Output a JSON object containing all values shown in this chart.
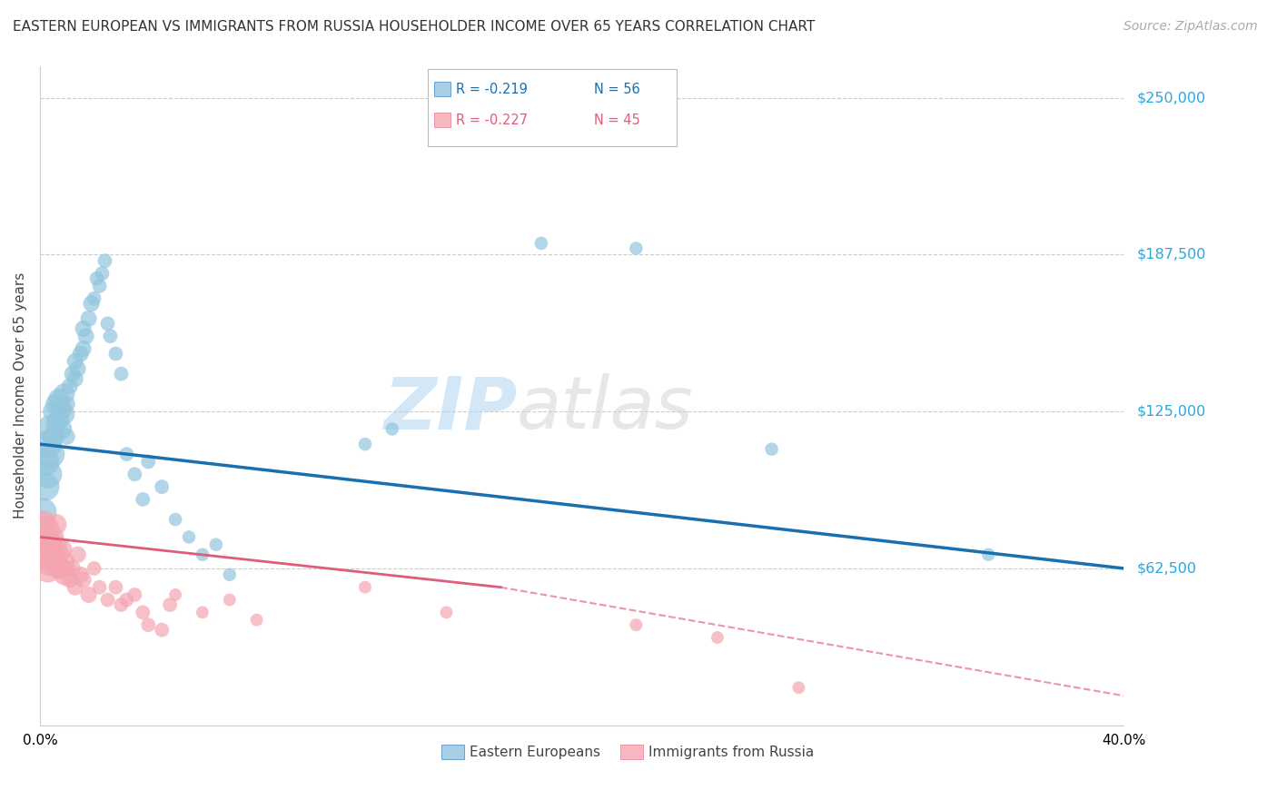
{
  "title": "EASTERN EUROPEAN VS IMMIGRANTS FROM RUSSIA HOUSEHOLDER INCOME OVER 65 YEARS CORRELATION CHART",
  "source": "Source: ZipAtlas.com",
  "ylabel": "Householder Income Over 65 years",
  "xlim": [
    0.0,
    0.4
  ],
  "ylim": [
    0,
    262500
  ],
  "yticks": [
    0,
    62500,
    125000,
    187500,
    250000
  ],
  "xticks": [
    0.0,
    0.05,
    0.1,
    0.15,
    0.2,
    0.25,
    0.3,
    0.35,
    0.4
  ],
  "watermark": "ZIPatlas",
  "legend_blue_r": "R = -0.219",
  "legend_blue_n": "N = 56",
  "legend_pink_r": "R = -0.227",
  "legend_pink_n": "N = 45",
  "legend_label_blue": "Eastern Europeans",
  "legend_label_pink": "Immigrants from Russia",
  "blue_color": "#92c5de",
  "pink_color": "#f4a5b0",
  "trendline_blue_color": "#1a6faf",
  "trendline_pink_color": "#e05c7a",
  "blue_x": [
    0.001,
    0.001,
    0.002,
    0.002,
    0.003,
    0.003,
    0.004,
    0.004,
    0.005,
    0.005,
    0.006,
    0.006,
    0.007,
    0.007,
    0.008,
    0.008,
    0.009,
    0.009,
    0.01,
    0.01,
    0.011,
    0.012,
    0.013,
    0.013,
    0.014,
    0.015,
    0.016,
    0.016,
    0.017,
    0.018,
    0.019,
    0.02,
    0.021,
    0.022,
    0.023,
    0.024,
    0.025,
    0.026,
    0.028,
    0.03,
    0.032,
    0.035,
    0.038,
    0.04,
    0.045,
    0.05,
    0.055,
    0.06,
    0.065,
    0.07,
    0.12,
    0.13,
    0.185,
    0.22,
    0.27,
    0.35
  ],
  "blue_y": [
    75000,
    85000,
    95000,
    105000,
    100000,
    112000,
    108000,
    118000,
    115000,
    125000,
    120000,
    128000,
    122000,
    130000,
    118000,
    126000,
    124000,
    132000,
    115000,
    128000,
    135000,
    140000,
    138000,
    145000,
    142000,
    148000,
    150000,
    158000,
    155000,
    162000,
    168000,
    170000,
    178000,
    175000,
    180000,
    185000,
    160000,
    155000,
    148000,
    140000,
    108000,
    100000,
    90000,
    105000,
    95000,
    82000,
    75000,
    68000,
    72000,
    60000,
    112000,
    118000,
    192000,
    190000,
    110000,
    68000
  ],
  "pink_x": [
    0.001,
    0.001,
    0.002,
    0.002,
    0.003,
    0.003,
    0.004,
    0.005,
    0.005,
    0.006,
    0.006,
    0.007,
    0.007,
    0.008,
    0.008,
    0.009,
    0.009,
    0.01,
    0.011,
    0.012,
    0.013,
    0.014,
    0.015,
    0.016,
    0.018,
    0.02,
    0.022,
    0.025,
    0.028,
    0.03,
    0.032,
    0.035,
    0.038,
    0.04,
    0.045,
    0.048,
    0.05,
    0.06,
    0.07,
    0.08,
    0.12,
    0.15,
    0.22,
    0.25,
    0.28
  ],
  "pink_y": [
    72000,
    80000,
    68000,
    78000,
    62500,
    72000,
    65000,
    75000,
    68000,
    80000,
    72000,
    68000,
    62500,
    62500,
    70000,
    60000,
    65000,
    62500,
    58000,
    62500,
    55000,
    68000,
    60000,
    58000,
    52000,
    62500,
    55000,
    50000,
    55000,
    48000,
    50000,
    52000,
    45000,
    40000,
    38000,
    48000,
    52000,
    45000,
    50000,
    42000,
    55000,
    45000,
    40000,
    35000,
    15000
  ],
  "background_color": "#ffffff",
  "grid_color": "#cccccc"
}
